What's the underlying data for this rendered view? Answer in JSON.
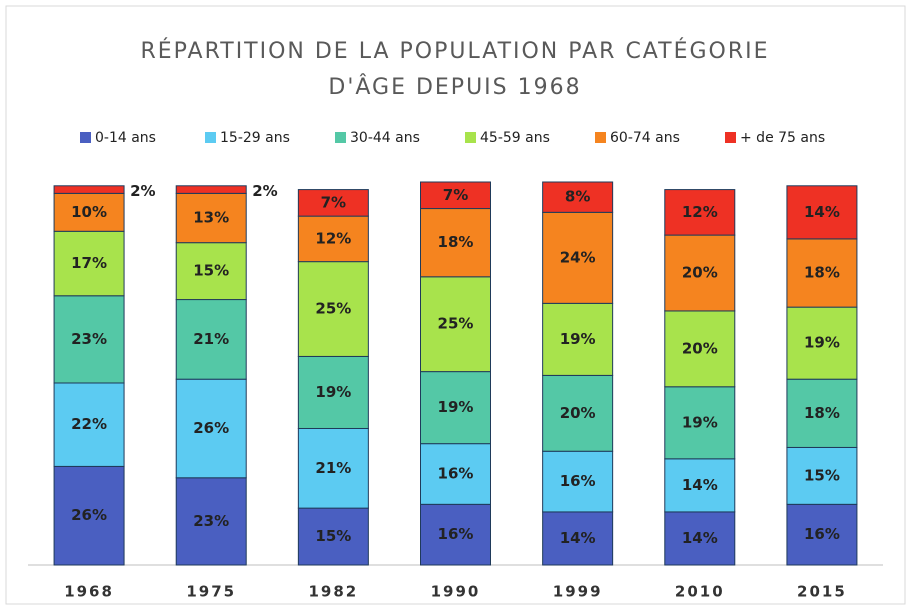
{
  "chart_data": {
    "type": "stacked_bar",
    "title": [
      "RÉPARTITION DE LA POPULATION PAR CATÉGORIE",
      "D'ÂGE DEPUIS 1968"
    ],
    "categories": [
      "1968",
      "1975",
      "1982",
      "1990",
      "1999",
      "2010",
      "2015"
    ],
    "series": [
      {
        "name": "0-14 ans",
        "color": "#4a5fc1",
        "values": [
          26,
          23,
          15,
          16,
          14,
          14,
          16
        ],
        "value_labels": [
          "26%",
          "23%",
          "15%",
          "16%",
          "14%",
          "14%",
          "16%"
        ]
      },
      {
        "name": "15-29 ans",
        "color": "#5ccbf2",
        "values": [
          22,
          26,
          21,
          16,
          16,
          14,
          15
        ],
        "value_labels": [
          "22%",
          "26%",
          "21%",
          "16%",
          "16%",
          "14%",
          "15%"
        ]
      },
      {
        "name": "30-44 ans",
        "color": "#54c8a6",
        "values": [
          23,
          21,
          19,
          19,
          20,
          19,
          18
        ],
        "value_labels": [
          "23%",
          "21%",
          "19%",
          "19%",
          "20%",
          "19%",
          "18%"
        ]
      },
      {
        "name": "45-59 ans",
        "color": "#a8e34c",
        "values": [
          17,
          15,
          25,
          25,
          19,
          20,
          19
        ],
        "value_labels": [
          "17%",
          "15%",
          "25%",
          "25%",
          "19%",
          "20%",
          "19%"
        ]
      },
      {
        "name": "60-74 ans",
        "color": "#f5841f",
        "values": [
          10,
          13,
          12,
          18,
          24,
          20,
          18
        ],
        "value_labels": [
          "10%",
          "13%",
          "12%",
          "18%",
          "24%",
          "20%",
          "18%"
        ]
      },
      {
        "name": "+ de 75 ans",
        "color": "#ee3124",
        "values": [
          2,
          2,
          7,
          7,
          8,
          12,
          14
        ],
        "value_labels": [
          "2%",
          "2%",
          "7%",
          "7%",
          "8%",
          "12%",
          "14%"
        ]
      }
    ]
  }
}
